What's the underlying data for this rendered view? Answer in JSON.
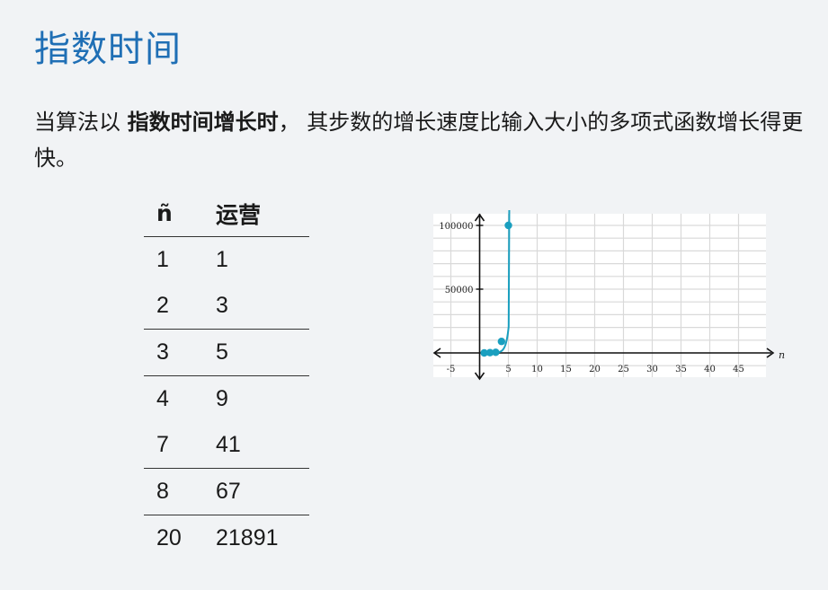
{
  "title": "指数时间",
  "intro": {
    "part1": "当算法以 ",
    "bold": "指数时间增长时",
    "part2": "， 其步数的增长速度比输入大小的多项式函数增长得更快。"
  },
  "table": {
    "headers": [
      "ñ",
      "运营"
    ],
    "rows": [
      [
        "1",
        "1"
      ],
      [
        "2",
        "3"
      ],
      [
        "3",
        "5"
      ],
      [
        "4",
        "9"
      ],
      [
        "7",
        "41"
      ],
      [
        "8",
        "67"
      ],
      [
        "20",
        "21891"
      ]
    ]
  },
  "chart_data": {
    "type": "line",
    "xlabel": "n",
    "ylabel": "",
    "xlim": [
      -7,
      49
    ],
    "ylim": [
      -8000,
      105000
    ],
    "x_ticks": [
      "-5",
      "5",
      "10",
      "15",
      "20",
      "25",
      "30",
      "35",
      "40",
      "45"
    ],
    "y_ticks": [
      "100000",
      "50000"
    ],
    "points": [
      [
        1,
        1
      ],
      [
        2,
        3
      ],
      [
        3,
        5
      ],
      [
        4,
        9
      ],
      [
        5,
        100000
      ]
    ],
    "marker_points": [
      [
        0.8,
        0
      ],
      [
        1.8,
        200
      ],
      [
        2.8,
        500
      ],
      [
        3.8,
        9000
      ],
      [
        5,
        100000
      ]
    ],
    "color": "#1a9fbf",
    "grid": true
  }
}
